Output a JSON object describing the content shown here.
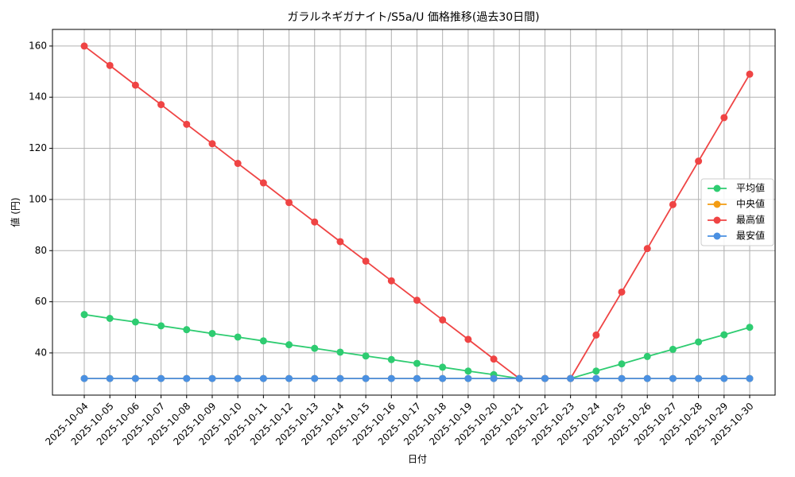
{
  "chart_data": {
    "type": "line",
    "title": "ガラルネギガナイト/S5a/U 価格推移(過去30日間)",
    "x_label": "日付",
    "y_label": "値 (円)",
    "categories": [
      "2025-10-04",
      "2025-10-05",
      "2025-10-06",
      "2025-10-07",
      "2025-10-08",
      "2025-10-09",
      "2025-10-10",
      "2025-10-11",
      "2025-10-12",
      "2025-10-13",
      "2025-10-14",
      "2025-10-15",
      "2025-10-16",
      "2025-10-17",
      "2025-10-18",
      "2025-10-19",
      "2025-10-20",
      "2025-10-21",
      "2025-10-22",
      "2025-10-23",
      "2025-10-24",
      "2025-10-25",
      "2025-10-26",
      "2025-10-27",
      "2025-10-28",
      "2025-10-29",
      "2025-10-30"
    ],
    "series": [
      {
        "name": "平均値",
        "color": "#2ecc71",
        "values": [
          55,
          53.5,
          52.1,
          50.6,
          49.1,
          47.6,
          46.2,
          44.7,
          43.2,
          41.8,
          40.3,
          38.8,
          37.4,
          35.9,
          34.4,
          32.9,
          31.5,
          30,
          30,
          30,
          32.9,
          35.7,
          38.6,
          41.4,
          44.3,
          47.1,
          50
        ]
      },
      {
        "name": "中央値",
        "color": "#f39c12",
        "values": [
          30,
          30,
          30,
          30,
          30,
          30,
          30,
          30,
          30,
          30,
          30,
          30,
          30,
          30,
          30,
          30,
          30,
          30,
          30,
          30,
          30,
          30,
          30,
          30,
          30,
          30,
          30
        ]
      },
      {
        "name": "最高値",
        "color": "#ef4444",
        "values": [
          160,
          152.4,
          144.7,
          137.1,
          129.4,
          121.8,
          114.1,
          106.5,
          98.8,
          91.2,
          83.5,
          75.9,
          68.2,
          60.6,
          52.9,
          45.3,
          37.6,
          30,
          30,
          30,
          47,
          63.8,
          80.8,
          98,
          115,
          132,
          149
        ]
      },
      {
        "name": "最安値",
        "color": "#4a90e2",
        "values": [
          30,
          30,
          30,
          30,
          30,
          30,
          30,
          30,
          30,
          30,
          30,
          30,
          30,
          30,
          30,
          30,
          30,
          30,
          30,
          30,
          30,
          30,
          30,
          30,
          30,
          30,
          30
        ]
      }
    ],
    "ylim": [
      23.5,
      166.5
    ],
    "yticks": [
      40,
      60,
      80,
      100,
      120,
      140,
      160
    ],
    "grid": true,
    "legend": "center right"
  }
}
